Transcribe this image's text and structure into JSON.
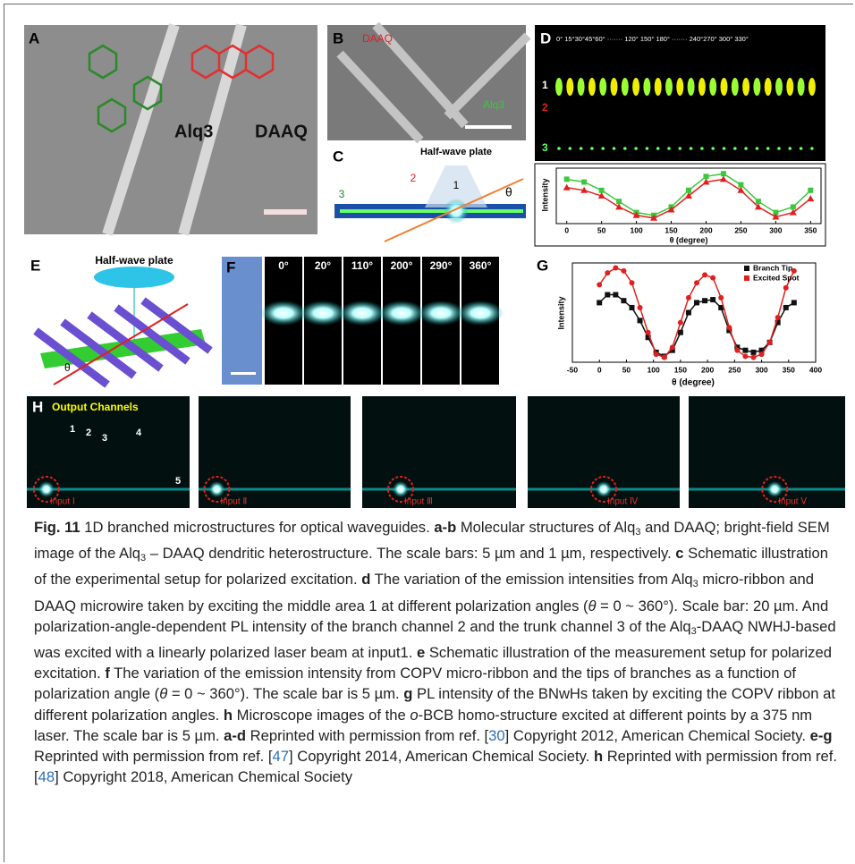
{
  "figure": {
    "panel_a": {
      "label": "A",
      "molecule_1": "Alq3",
      "molecule_2": "DAAQ"
    },
    "panel_b": {
      "label": "B",
      "text_1": "DAAQ",
      "text_2": "Alq3"
    },
    "panel_c": {
      "label": "C",
      "plate": "Half-wave plate",
      "spot_1": "1",
      "spot_2": "2",
      "spot_3": "3",
      "angle": "θ"
    },
    "panel_d": {
      "label": "D",
      "angles": "0°  15°30°45°60°  ·······  120°   150°   180°  ·······  240°270°  300°   330°",
      "row_1": "1",
      "row_2": "2",
      "row_3": "3",
      "plot": {
        "ylabel": "Intensity",
        "xlabel": "θ (degree)",
        "xlim": [
          -15,
          365
        ],
        "ylim": [
          0,
          1
        ],
        "xticks": [
          0,
          50,
          100,
          150,
          200,
          250,
          300,
          350
        ],
        "x": [
          0,
          25,
          50,
          75,
          100,
          125,
          150,
          175,
          200,
          225,
          250,
          275,
          300,
          325,
          350
        ],
        "series": [
          {
            "color": "#3cc83c",
            "values": [
              0.8,
              0.75,
              0.6,
              0.4,
              0.2,
              0.15,
              0.3,
              0.6,
              0.85,
              0.9,
              0.7,
              0.4,
              0.2,
              0.3,
              0.6
            ]
          },
          {
            "color": "#e02020",
            "values": [
              0.65,
              0.6,
              0.5,
              0.3,
              0.15,
              0.1,
              0.25,
              0.5,
              0.75,
              0.8,
              0.6,
              0.3,
              0.12,
              0.2,
              0.45
            ]
          }
        ]
      }
    },
    "panel_e": {
      "label": "E",
      "plate": "Half-wave plate",
      "angle": "θ"
    },
    "panel_f": {
      "label": "F",
      "angles": [
        "0°",
        "20°",
        "110°",
        "200°",
        "290°",
        "360°"
      ]
    },
    "panel_g": {
      "label": "G",
      "plot": {
        "ylabel": "Intensity",
        "xlabel": "θ (degree)",
        "xlim": [
          -50,
          400
        ],
        "ylim": [
          0,
          1
        ],
        "xticks": [
          -50,
          0,
          50,
          100,
          150,
          200,
          250,
          300,
          350,
          400
        ],
        "x": [
          0,
          15,
          30,
          45,
          60,
          75,
          90,
          105,
          120,
          135,
          150,
          165,
          180,
          195,
          210,
          225,
          240,
          255,
          270,
          285,
          300,
          315,
          330,
          345,
          360
        ],
        "series": [
          {
            "name": "Branch Tip",
            "color": "#111111",
            "values": [
              0.6,
              0.68,
              0.68,
              0.62,
              0.55,
              0.42,
              0.25,
              0.1,
              0.06,
              0.12,
              0.3,
              0.5,
              0.6,
              0.62,
              0.63,
              0.55,
              0.32,
              0.15,
              0.12,
              0.1,
              0.12,
              0.2,
              0.4,
              0.55,
              0.6
            ]
          },
          {
            "name": "Excited Spot",
            "color": "#e02020",
            "values": [
              0.78,
              0.9,
              0.95,
              0.92,
              0.8,
              0.55,
              0.3,
              0.08,
              0.05,
              0.15,
              0.4,
              0.65,
              0.8,
              0.88,
              0.85,
              0.65,
              0.35,
              0.12,
              0.06,
              0.05,
              0.08,
              0.2,
              0.45,
              0.75,
              0.92
            ]
          }
        ]
      }
    },
    "panel_h": {
      "label": "H",
      "title": "Output Channels",
      "channels": [
        "1",
        "2",
        "3",
        "4",
        "5"
      ],
      "inputs": [
        "Input Ⅰ",
        "Input Ⅱ",
        "Input Ⅲ",
        "Input Ⅳ",
        "Input Ⅴ"
      ]
    }
  },
  "caption": {
    "segments": [
      {
        "text": "Fig. 11",
        "style": "bold"
      },
      {
        "text": " 1D branched microstructures for optical waveguides. ",
        "style": "normal"
      },
      {
        "text": "a-b",
        "style": "bold"
      },
      {
        "text": " Molecular structures of Alq",
        "style": "normal"
      },
      {
        "text": "3",
        "style": "sub"
      },
      {
        "text": " and DAAQ; bright-field SEM image of the Alq",
        "style": "normal"
      },
      {
        "text": "3",
        "style": "sub"
      },
      {
        "text": " – DAAQ dendritic heterostructure. The scale bars: 5 µm and 1 µm, respectively. ",
        "style": "normal"
      },
      {
        "text": "c",
        "style": "bold"
      },
      {
        "text": " Schematic illustration of the experimental setup for polarized excitation. ",
        "style": "normal"
      },
      {
        "text": "d",
        "style": "bold"
      },
      {
        "text": " The variation of the emission intensities from Alq",
        "style": "normal"
      },
      {
        "text": "3",
        "style": "sub"
      },
      {
        "text": " micro-ribbon and DAAQ microwire taken by exciting the middle area 1 at different polarization angles (",
        "style": "normal"
      },
      {
        "text": "θ",
        "style": "italic"
      },
      {
        "text": " = 0 ~ 360°). Scale bar: 20 µm. And polarization-angle-dependent PL intensity of the branch channel 2 and the trunk channel 3 of the Alq",
        "style": "normal"
      },
      {
        "text": "3",
        "style": "sub"
      },
      {
        "text": "-DAAQ NWHJ-based was excited with a linearly polarized laser beam at input1. ",
        "style": "normal"
      },
      {
        "text": "e",
        "style": "bold"
      },
      {
        "text": " Schematic illustration of the measurement setup for polarized excitation. ",
        "style": "normal"
      },
      {
        "text": "f",
        "style": "bold"
      },
      {
        "text": " The variation of the emission intensity from COPV micro-ribbon and the tips of branches as a function of polarization angle (",
        "style": "normal"
      },
      {
        "text": "θ",
        "style": "italic"
      },
      {
        "text": " = 0 ~ 360°). The scale bar is 5 µm. ",
        "style": "normal"
      },
      {
        "text": "g",
        "style": "bold"
      },
      {
        "text": " PL intensity of the BNwHs taken by exciting the COPV ribbon at different polarization angles. ",
        "style": "normal"
      },
      {
        "text": "h",
        "style": "bold"
      },
      {
        "text": " Microscope images of the ",
        "style": "normal"
      },
      {
        "text": "o",
        "style": "italic"
      },
      {
        "text": "-BCB homo-structure excited at different points by a 375 nm laser. The scale bar is 5 µm. ",
        "style": "normal"
      },
      {
        "text": "a-d",
        "style": "bold"
      },
      {
        "text": " Reprinted with permission from ref. [",
        "style": "normal"
      },
      {
        "text": "30",
        "style": "link"
      },
      {
        "text": "] Copyright 2012, American Chemical Society. ",
        "style": "normal"
      },
      {
        "text": "e-g",
        "style": "bold"
      },
      {
        "text": " Reprinted with permission from ref. [",
        "style": "normal"
      },
      {
        "text": "47",
        "style": "link"
      },
      {
        "text": "] Copyright 2014, American Chemical Society. ",
        "style": "normal"
      },
      {
        "text": "h",
        "style": "bold"
      },
      {
        "text": " Reprinted with permission from ref. [",
        "style": "normal"
      },
      {
        "text": "48",
        "style": "link"
      },
      {
        "text": "] Copyright 2018, American Chemical Society",
        "style": "normal"
      }
    ]
  }
}
